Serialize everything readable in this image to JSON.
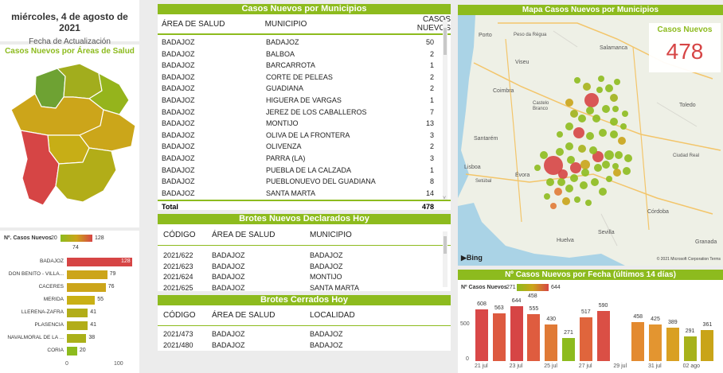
{
  "header": {
    "date": "miércoles, 4 de agosto de 2021",
    "date_label": "Fecha de Actualización",
    "areas_title": "Casos Nuevos por Áreas de Salud"
  },
  "legend": {
    "label": "Nº. Casos Nuevos",
    "min": "20",
    "mid": "74",
    "max": "128"
  },
  "chart_data": [
    {
      "type": "bar",
      "orientation": "horizontal",
      "categories": [
        "BADAJOZ",
        "DON BENITO - VILLA...",
        "CÁCERES",
        "MÉRIDA",
        "LLERENA-ZAFRA",
        "PLASENCIA",
        "NAVALMORAL DE LA ...",
        "CORIA"
      ],
      "values": [
        128,
        79,
        76,
        55,
        41,
        41,
        38,
        20
      ],
      "value_labels": [
        "128",
        "79",
        "76",
        "55",
        "41",
        "41",
        "38",
        "20"
      ],
      "colors": [
        "#d64545",
        "#cca51a",
        "#cca51a",
        "#c9b015",
        "#b2ad18",
        "#b2ad18",
        "#aab01a",
        "#8dbb1e"
      ],
      "xlim": [
        0,
        128
      ],
      "xticks": [
        "0",
        "100"
      ]
    },
    {
      "type": "bar",
      "title": "Nº Casos Nuevos por Fecha (últimos 14 días)",
      "legend_label": "Nº Casos Nuevos",
      "legend_min": "271",
      "legend_mid": "458",
      "legend_max": "644",
      "values": [
        608,
        563,
        644,
        555,
        430,
        271,
        517,
        590,
        null,
        458,
        425,
        389,
        291,
        361
      ],
      "value_labels": [
        "608",
        "563",
        "644",
        "555",
        "430",
        "271",
        "517",
        "590",
        "",
        "458",
        "425",
        "389",
        "291",
        "361"
      ],
      "colors": [
        "#d94848",
        "#dd5a40",
        "#d64545",
        "#df5c3f",
        "#e07a36",
        "#8dbb1e",
        "#e0653c",
        "#da4f45",
        "#ffffff",
        "#e38a30",
        "#e39530",
        "#d9a022",
        "#a7b21b",
        "#c9a418"
      ],
      "x_labels": [
        "21 jul",
        "23 jul",
        "25 jul",
        "27 jul",
        "29 jul",
        "31 jul",
        "02 ago"
      ],
      "yticks": [
        "0",
        "500"
      ],
      "ylim": [
        0,
        700
      ]
    }
  ],
  "municipios": {
    "title": "Casos Nuevos por Municipios",
    "headers": [
      "ÁREA DE SALUD",
      "MUNICIPIO",
      "CASOS NUEVOS"
    ],
    "rows": [
      [
        "BADAJOZ",
        "BADAJOZ",
        "50"
      ],
      [
        "BADAJOZ",
        "BALBOA",
        "2"
      ],
      [
        "BADAJOZ",
        "BARCARROTA",
        "1"
      ],
      [
        "BADAJOZ",
        "CORTE DE PELEAS",
        "2"
      ],
      [
        "BADAJOZ",
        "GUADIANA",
        "2"
      ],
      [
        "BADAJOZ",
        "HIGUERA DE VARGAS",
        "1"
      ],
      [
        "BADAJOZ",
        "JEREZ DE LOS CABALLEROS",
        "7"
      ],
      [
        "BADAJOZ",
        "MONTIJO",
        "13"
      ],
      [
        "BADAJOZ",
        "OLIVA DE LA FRONTERA",
        "3"
      ],
      [
        "BADAJOZ",
        "OLIVENZA",
        "2"
      ],
      [
        "BADAJOZ",
        "PARRA (LA)",
        "3"
      ],
      [
        "BADAJOZ",
        "PUEBLA DE LA CALZADA",
        "1"
      ],
      [
        "BADAJOZ",
        "PUEBLONUEVO DEL GUADIANA",
        "8"
      ],
      [
        "BADAJOZ",
        "SANTA MARTA",
        "14"
      ]
    ],
    "total_label": "Total",
    "total_value": "478"
  },
  "brotes_nuevos": {
    "title": "Brotes Nuevos Declarados Hoy",
    "headers": [
      "CÓDIGO",
      "ÁREA DE SALUD",
      "MUNICIPIO"
    ],
    "rows": [
      [
        "2021/622",
        "BADAJOZ",
        "BADAJOZ"
      ],
      [
        "2021/623",
        "BADAJOZ",
        "BADAJOZ"
      ],
      [
        "2021/624",
        "BADAJOZ",
        "MONTIJO"
      ],
      [
        "2021/625",
        "BADAJOZ",
        "SANTA MARTA"
      ]
    ]
  },
  "brotes_cerrados": {
    "title": "Brotes Cerrados Hoy",
    "headers": [
      "CÓDIGO",
      "ÁREA DE SALUD",
      "LOCALIDAD"
    ],
    "rows": [
      [
        "2021/473",
        "BADAJOZ",
        "BADAJOZ"
      ],
      [
        "2021/480",
        "BADAJOZ",
        "BADAJOZ"
      ]
    ]
  },
  "mapa": {
    "title": "Mapa Casos Nuevos por Municipios",
    "kpi_label": "Casos Nuevos",
    "kpi_value": "478",
    "places": [
      "Porto",
      "Salamanca",
      "Viseu",
      "Coimbra",
      "Castelo Branco",
      "Toledo",
      "Santarém",
      "Lisboa",
      "Setúbal",
      "Évora",
      "Córdoba",
      "Huelva",
      "Sevilla",
      "Granada",
      "Peso da Régua",
      "Ciudad Real"
    ],
    "bing": "Bing",
    "copyright": "© 2021 Microsoft Corporation Terms",
    "colors": {
      "water": "#aad3e6",
      "land": "#eef0e6",
      "road": "#f3c56a"
    }
  }
}
